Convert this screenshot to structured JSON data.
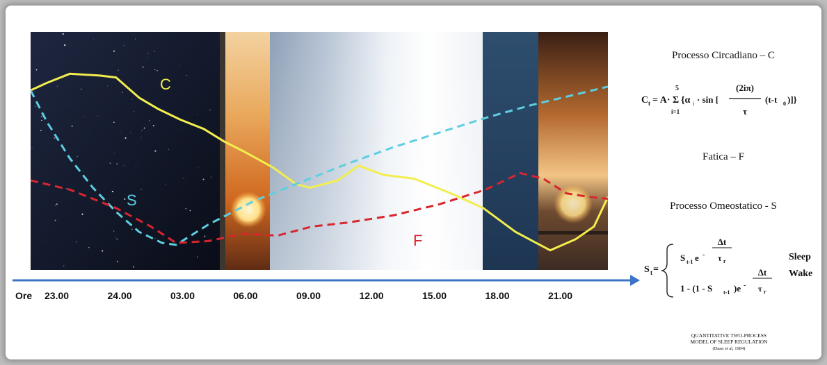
{
  "chart_data": {
    "type": "line",
    "x_axis": {
      "prefix": "Ore",
      "ticks": [
        "23.00",
        "24.00",
        "03.00",
        "06.00",
        "09.00",
        "12.00",
        "15.00",
        "18.00",
        "21.00"
      ]
    },
    "series": [
      {
        "name": "C",
        "color": "#f2ee4e",
        "style": "solid",
        "x": [
          22.3,
          23.0,
          24.0,
          25.3,
          26.0,
          27.0,
          27.8,
          28.8,
          29.8,
          30.7,
          31.5,
          32.8,
          33.8,
          34.4,
          35.6,
          36.5,
          37.6,
          38.9,
          40.5,
          41.9,
          43.3,
          44.8,
          45.9,
          46.7,
          47.3
        ],
        "y": [
          0.89,
          0.93,
          0.98,
          0.97,
          0.96,
          0.85,
          0.79,
          0.73,
          0.68,
          0.61,
          0.56,
          0.47,
          0.38,
          0.36,
          0.4,
          0.48,
          0.43,
          0.41,
          0.33,
          0.25,
          0.12,
          0.02,
          0.08,
          0.15,
          0.31
        ]
      },
      {
        "name": "S",
        "color": "#5ecfe0",
        "style": "dashed",
        "x": [
          22.3,
          23.0,
          24.0,
          25.0,
          26.0,
          27.0,
          28.0,
          28.6,
          30.0,
          32.0,
          34.0,
          36.0,
          38.0,
          40.0,
          42.0,
          44.0,
          46.0,
          47.3
        ],
        "y": [
          0.89,
          0.72,
          0.52,
          0.36,
          0.23,
          0.12,
          0.06,
          0.05,
          0.16,
          0.29,
          0.39,
          0.49,
          0.58,
          0.66,
          0.74,
          0.81,
          0.87,
          0.91
        ]
      },
      {
        "name": "F",
        "color": "#d8262e",
        "style": "dashed",
        "x": [
          22.3,
          24.0,
          26.0,
          27.5,
          28.6,
          30.0,
          31.5,
          33.0,
          34.5,
          36.0,
          38.0,
          40.0,
          42.0,
          43.5,
          44.5,
          45.5,
          46.5,
          47.3
        ],
        "y": [
          0.4,
          0.35,
          0.25,
          0.15,
          0.06,
          0.07,
          0.11,
          0.1,
          0.15,
          0.17,
          0.21,
          0.27,
          0.35,
          0.44,
          0.41,
          0.33,
          0.31,
          0.3
        ]
      }
    ],
    "background_phases": [
      "night",
      "sunrise",
      "day",
      "day",
      "dusk",
      "sunset"
    ]
  },
  "formulas": {
    "c_title": "Processo Circadiano – C",
    "c_lhs": "C",
    "c_lhs_sub": "t",
    "c_eq": "= A·",
    "c_sigma": "Σ",
    "c_sigma_top": "5",
    "c_sigma_bottom": "i=1",
    "c_body": "{α",
    "c_alpha_sub": "i",
    "c_sin": "· sin [",
    "c_frac_num": "(2iπ)",
    "c_frac_den": "τ",
    "c_tail": "(t-t",
    "c_tail_sub": "0",
    "c_close": ")]}",
    "f_title": "Fatica – F",
    "s_title": "Processo Omeostatico - S",
    "s_lhs": "S",
    "s_lhs_sub": "t",
    "s_eq": "=",
    "s_row1": "S",
    "s_row1_sub": "t-1",
    "s_row1_e": " e",
    "s_row1_minus": " -",
    "s_row1_num": "Δt",
    "s_row1_den": "τ",
    "s_row1_den_sub": "r",
    "s_row2": "1 - (1 - S",
    "s_row2_sub": "t-1",
    "s_row2_e": ")e",
    "s_row2_minus": " -",
    "s_row2_num": "Δt",
    "s_row2_den": "τ",
    "s_row2_den_sub": "r",
    "sleep": "Sleep",
    "wake": "Wake"
  },
  "caption": {
    "line1": "QUANTITATIVE TWO-PROCESS",
    "line2": "MODEL OF SLEEP REGULATION",
    "line3": "(Daan et al, 1984)"
  },
  "colors": {
    "axis": "#3b74c4"
  }
}
